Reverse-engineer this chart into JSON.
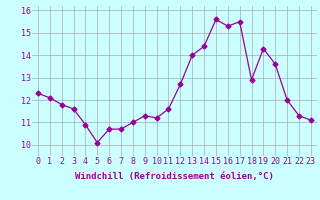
{
  "x": [
    0,
    1,
    2,
    3,
    4,
    5,
    6,
    7,
    8,
    9,
    10,
    11,
    12,
    13,
    14,
    15,
    16,
    17,
    18,
    19,
    20,
    21,
    22,
    23
  ],
  "y": [
    12.3,
    12.1,
    11.8,
    11.6,
    10.9,
    10.1,
    10.7,
    10.7,
    11.0,
    11.3,
    11.2,
    11.6,
    12.7,
    14.0,
    14.4,
    15.6,
    15.3,
    15.5,
    12.9,
    14.3,
    13.6,
    12.0,
    11.3,
    11.1
  ],
  "line_color": "#990099",
  "marker": "D",
  "marker_size": 2.5,
  "bg_color": "#ccffff",
  "grid_color": "#aaaaaa",
  "xlabel": "Windchill (Refroidissement éolien,°C)",
  "xlabel_fontsize": 6.5,
  "tick_fontsize": 6.0,
  "ylim": [
    9.5,
    16.2
  ],
  "yticks": [
    10,
    11,
    12,
    13,
    14,
    15,
    16
  ],
  "xticks": [
    0,
    1,
    2,
    3,
    4,
    5,
    6,
    7,
    8,
    9,
    10,
    11,
    12,
    13,
    14,
    15,
    16,
    17,
    18,
    19,
    20,
    21,
    22,
    23
  ],
  "xlim": [
    -0.5,
    23.5
  ]
}
